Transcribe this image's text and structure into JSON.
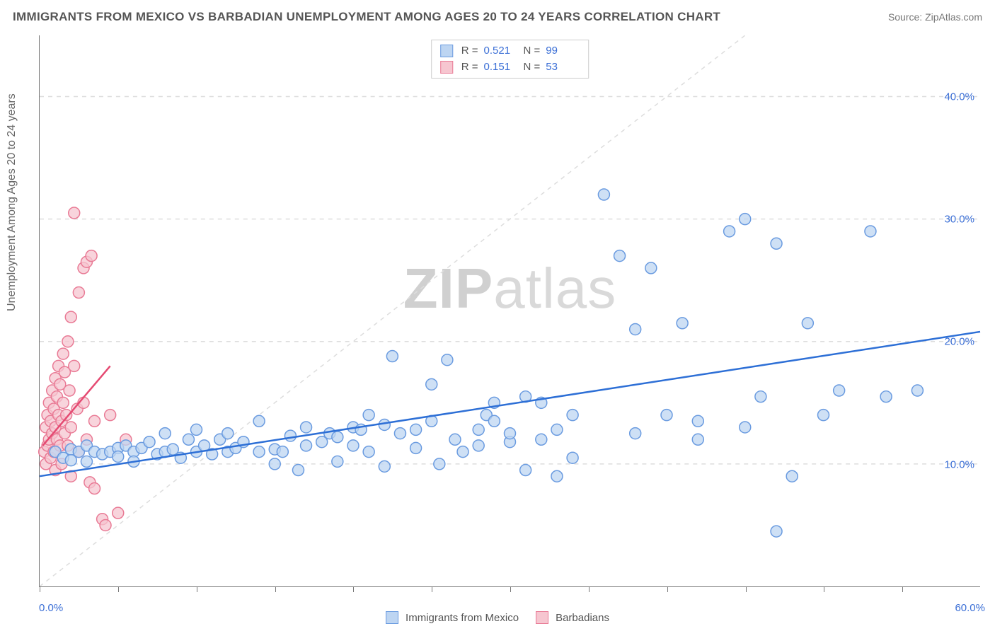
{
  "title": "IMMIGRANTS FROM MEXICO VS BARBADIAN UNEMPLOYMENT AMONG AGES 20 TO 24 YEARS CORRELATION CHART",
  "source": "Source: ZipAtlas.com",
  "y_axis_label": "Unemployment Among Ages 20 to 24 years",
  "watermark_a": "ZIP",
  "watermark_b": "atlas",
  "chart": {
    "type": "scatter",
    "xlim": [
      0,
      60
    ],
    "ylim": [
      0,
      45
    ],
    "x_ticks": [
      0,
      5,
      10,
      15,
      20,
      25,
      30,
      35,
      40,
      45,
      50,
      55
    ],
    "x_tick_labels": {
      "0": "0.0%",
      "60": "60.0%"
    },
    "y_gridlines": [
      10,
      20,
      30,
      40
    ],
    "y_tick_labels": {
      "10": "10.0%",
      "20": "20.0%",
      "30": "30.0%",
      "40": "40.0%"
    },
    "background_color": "#ffffff",
    "grid_color": "#dddddd",
    "axis_color": "#777777",
    "marker_radius": 8,
    "marker_stroke_width": 1.5,
    "trend_line_width": 2.5,
    "diagonal_color": "#dddddd",
    "series": [
      {
        "name": "Immigrants from Mexico",
        "fill": "#bdd5f2",
        "stroke": "#6a9be0",
        "trend_color": "#2d6fd6",
        "R": "0.521",
        "N": "99",
        "trend": {
          "x1": 0,
          "y1": 9.0,
          "x2": 60,
          "y2": 20.8
        },
        "points": [
          [
            1,
            11
          ],
          [
            1.5,
            10.5
          ],
          [
            2,
            11.2
          ],
          [
            2,
            10.3
          ],
          [
            2.5,
            11
          ],
          [
            3,
            11.5
          ],
          [
            3,
            10.2
          ],
          [
            3.5,
            11
          ],
          [
            4,
            10.8
          ],
          [
            4.5,
            11
          ],
          [
            5,
            11.3
          ],
          [
            5,
            10.6
          ],
          [
            5.5,
            11.5
          ],
          [
            6,
            11
          ],
          [
            6,
            10.2
          ],
          [
            6.5,
            11.3
          ],
          [
            7,
            11.8
          ],
          [
            7.5,
            10.8
          ],
          [
            8,
            12.5
          ],
          [
            8,
            11
          ],
          [
            8.5,
            11.2
          ],
          [
            9,
            10.5
          ],
          [
            9.5,
            12
          ],
          [
            10,
            12.8
          ],
          [
            10,
            11
          ],
          [
            10.5,
            11.5
          ],
          [
            11,
            10.8
          ],
          [
            11.5,
            12
          ],
          [
            12,
            12.5
          ],
          [
            12,
            11
          ],
          [
            12.5,
            11.3
          ],
          [
            13,
            11.8
          ],
          [
            14,
            11
          ],
          [
            14,
            13.5
          ],
          [
            15,
            11.2
          ],
          [
            15,
            10
          ],
          [
            15.5,
            11
          ],
          [
            16,
            12.3
          ],
          [
            16.5,
            9.5
          ],
          [
            17,
            11.5
          ],
          [
            17,
            13
          ],
          [
            18,
            11.8
          ],
          [
            18.5,
            12.5
          ],
          [
            19,
            12.2
          ],
          [
            19,
            10.2
          ],
          [
            20,
            13
          ],
          [
            20,
            11.5
          ],
          [
            20.5,
            12.8
          ],
          [
            21,
            14
          ],
          [
            21,
            11
          ],
          [
            22,
            9.8
          ],
          [
            22,
            13.2
          ],
          [
            22.5,
            18.8
          ],
          [
            23,
            12.5
          ],
          [
            24,
            11.3
          ],
          [
            24,
            12.8
          ],
          [
            25,
            13.5
          ],
          [
            25,
            16.5
          ],
          [
            25.5,
            10
          ],
          [
            26,
            18.5
          ],
          [
            26.5,
            12
          ],
          [
            27,
            11
          ],
          [
            28,
            11.5
          ],
          [
            28,
            12.8
          ],
          [
            28.5,
            14
          ],
          [
            29,
            15
          ],
          [
            29,
            13.5
          ],
          [
            30,
            11.8
          ],
          [
            30,
            12.5
          ],
          [
            31,
            9.5
          ],
          [
            31,
            15.5
          ],
          [
            32,
            12
          ],
          [
            32,
            15
          ],
          [
            33,
            9
          ],
          [
            33,
            12.8
          ],
          [
            34,
            14
          ],
          [
            34,
            10.5
          ],
          [
            36,
            32
          ],
          [
            37,
            27
          ],
          [
            38,
            21
          ],
          [
            38,
            12.5
          ],
          [
            39,
            26
          ],
          [
            40,
            14
          ],
          [
            41,
            21.5
          ],
          [
            42,
            13.5
          ],
          [
            42,
            12
          ],
          [
            44,
            29
          ],
          [
            45,
            30
          ],
          [
            45,
            13
          ],
          [
            46,
            15.5
          ],
          [
            47,
            28
          ],
          [
            47,
            4.5
          ],
          [
            48,
            9
          ],
          [
            49,
            21.5
          ],
          [
            50,
            14
          ],
          [
            51,
            16
          ],
          [
            53,
            29
          ],
          [
            54,
            15.5
          ],
          [
            56,
            16
          ]
        ]
      },
      {
        "name": "Barbadians",
        "fill": "#f6c6d0",
        "stroke": "#e97a95",
        "trend_color": "#e54a72",
        "R": "0.151",
        "N": "53",
        "trend": {
          "x1": 0.2,
          "y1": 11.5,
          "x2": 4.5,
          "y2": 18
        },
        "points": [
          [
            0.3,
            11
          ],
          [
            0.4,
            13
          ],
          [
            0.4,
            10
          ],
          [
            0.5,
            14
          ],
          [
            0.5,
            11.5
          ],
          [
            0.6,
            12
          ],
          [
            0.6,
            15
          ],
          [
            0.7,
            13.5
          ],
          [
            0.7,
            10.5
          ],
          [
            0.8,
            16
          ],
          [
            0.8,
            12.5
          ],
          [
            0.9,
            14.5
          ],
          [
            0.9,
            11
          ],
          [
            1.0,
            17
          ],
          [
            1.0,
            13
          ],
          [
            1.0,
            9.5
          ],
          [
            1.1,
            15.5
          ],
          [
            1.1,
            12
          ],
          [
            1.2,
            18
          ],
          [
            1.2,
            14
          ],
          [
            1.3,
            11.5
          ],
          [
            1.3,
            16.5
          ],
          [
            1.4,
            13.5
          ],
          [
            1.4,
            10
          ],
          [
            1.5,
            19
          ],
          [
            1.5,
            15
          ],
          [
            1.6,
            12.5
          ],
          [
            1.6,
            17.5
          ],
          [
            1.7,
            14
          ],
          [
            1.8,
            20
          ],
          [
            1.8,
            11.5
          ],
          [
            1.9,
            16
          ],
          [
            2.0,
            22
          ],
          [
            2.0,
            13
          ],
          [
            2.0,
            9
          ],
          [
            2.2,
            18
          ],
          [
            2.2,
            30.5
          ],
          [
            2.4,
            14.5
          ],
          [
            2.5,
            24
          ],
          [
            2.5,
            11
          ],
          [
            2.8,
            26
          ],
          [
            2.8,
            15
          ],
          [
            3.0,
            26.5
          ],
          [
            3.0,
            12
          ],
          [
            3.2,
            8.5
          ],
          [
            3.3,
            27
          ],
          [
            3.5,
            13.5
          ],
          [
            3.5,
            8
          ],
          [
            4.0,
            5.5
          ],
          [
            4.2,
            5
          ],
          [
            4.5,
            14
          ],
          [
            5.0,
            6
          ],
          [
            5.5,
            12
          ]
        ]
      }
    ]
  },
  "stats_labels": {
    "R": "R =",
    "N": "N ="
  },
  "colors": {
    "text_muted": "#777777",
    "text_body": "#555555",
    "accent": "#3b6fd6"
  }
}
